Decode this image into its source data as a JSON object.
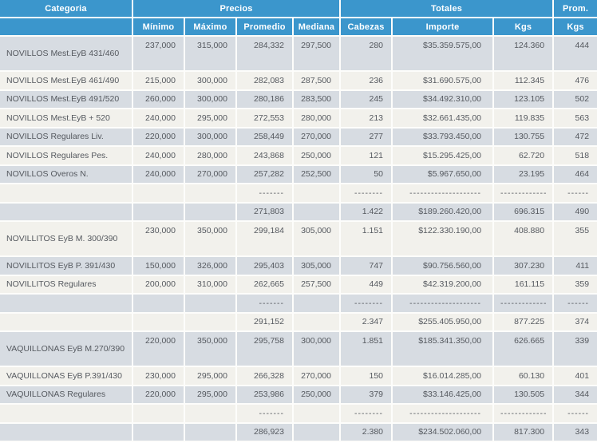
{
  "colors": {
    "header_bg": "#3b96cc",
    "header_text": "#ffffff",
    "row_shade": "#d7dce2",
    "row_light": "#f2f1ec",
    "body_text": "#55595f",
    "grid": "#fdfdfb"
  },
  "header": {
    "category": "Categoria",
    "groups": [
      {
        "label": "Precios"
      },
      {
        "label": "Totales"
      },
      {
        "label": "Prom."
      }
    ],
    "subcolumns": [
      "Mínimo",
      "Máximo",
      "Promedio",
      "Mediana",
      "Cabezas",
      "Importe",
      "Kgs",
      "Kgs"
    ]
  },
  "rows": [
    {
      "type": "data",
      "tall": true,
      "category": "NOVILLOS Mest.EyB 431/460",
      "min": "237,000",
      "max": "315,000",
      "avg": "284,332",
      "median": "297,500",
      "heads": "280",
      "amount": "$35.359.575,00",
      "kgs": "124.360",
      "avg_kgs": "444"
    },
    {
      "type": "data",
      "tall": false,
      "category": "NOVILLOS Mest.EyB 461/490",
      "min": "215,000",
      "max": "300,000",
      "avg": "282,083",
      "median": "287,500",
      "heads": "236",
      "amount": "$31.690.575,00",
      "kgs": "112.345",
      "avg_kgs": "476"
    },
    {
      "type": "data",
      "tall": false,
      "category": "NOVILLOS Mest.EyB 491/520",
      "min": "260,000",
      "max": "300,000",
      "avg": "280,186",
      "median": "283,500",
      "heads": "245",
      "amount": "$34.492.310,00",
      "kgs": "123.105",
      "avg_kgs": "502"
    },
    {
      "type": "data",
      "tall": false,
      "category": "NOVILLOS Mest.EyB + 520",
      "min": "240,000",
      "max": "295,000",
      "avg": "272,553",
      "median": "280,000",
      "heads": "213",
      "amount": "$32.661.435,00",
      "kgs": "119.835",
      "avg_kgs": "563"
    },
    {
      "type": "data",
      "tall": false,
      "category": "NOVILLOS Regulares Liv.",
      "min": "220,000",
      "max": "300,000",
      "avg": "258,449",
      "median": "270,000",
      "heads": "277",
      "amount": "$33.793.450,00",
      "kgs": "130.755",
      "avg_kgs": "472"
    },
    {
      "type": "data",
      "tall": false,
      "category": "NOVILLOS Regulares Pes.",
      "min": "240,000",
      "max": "280,000",
      "avg": "243,868",
      "median": "250,000",
      "heads": "121",
      "amount": "$15.295.425,00",
      "kgs": "62.720",
      "avg_kgs": "518"
    },
    {
      "type": "data",
      "tall": false,
      "category": "NOVILLOS Overos N.",
      "min": "240,000",
      "max": "270,000",
      "avg": "257,282",
      "median": "252,500",
      "heads": "50",
      "amount": "$5.967.650,00",
      "kgs": "23.195",
      "avg_kgs": "464"
    },
    {
      "type": "sep",
      "tall": false,
      "category": "",
      "min": "",
      "max": "",
      "avg": "-------",
      "median": "",
      "heads": "--------",
      "amount": "--------------------",
      "kgs": "-------------",
      "avg_kgs": "------"
    },
    {
      "type": "total",
      "tall": false,
      "category": "",
      "min": "",
      "max": "",
      "avg": "271,803",
      "median": "",
      "heads": "1.422",
      "amount": "$189.260.420,00",
      "kgs": "696.315",
      "avg_kgs": "490"
    },
    {
      "type": "data",
      "tall": true,
      "category": "NOVILLITOS EyB M. 300/390",
      "min": "230,000",
      "max": "350,000",
      "avg": "299,184",
      "median": "305,000",
      "heads": "1.151",
      "amount": "$122.330.190,00",
      "kgs": "408.880",
      "avg_kgs": "355"
    },
    {
      "type": "data",
      "tall": false,
      "category": "NOVILLITOS EyB P. 391/430",
      "min": "150,000",
      "max": "326,000",
      "avg": "295,403",
      "median": "305,000",
      "heads": "747",
      "amount": "$90.756.560,00",
      "kgs": "307.230",
      "avg_kgs": "411"
    },
    {
      "type": "data",
      "tall": false,
      "category": "NOVILLITOS Regulares",
      "min": "200,000",
      "max": "310,000",
      "avg": "262,665",
      "median": "257,500",
      "heads": "449",
      "amount": "$42.319.200,00",
      "kgs": "161.115",
      "avg_kgs": "359"
    },
    {
      "type": "sep",
      "tall": false,
      "category": "",
      "min": "",
      "max": "",
      "avg": "-------",
      "median": "",
      "heads": "--------",
      "amount": "--------------------",
      "kgs": "-------------",
      "avg_kgs": "------"
    },
    {
      "type": "total",
      "tall": false,
      "category": "",
      "min": "",
      "max": "",
      "avg": "291,152",
      "median": "",
      "heads": "2.347",
      "amount": "$255.405.950,00",
      "kgs": "877.225",
      "avg_kgs": "374"
    },
    {
      "type": "data",
      "tall": true,
      "category": "VAQUILLONAS EyB M.270/390",
      "min": "220,000",
      "max": "350,000",
      "avg": "295,758",
      "median": "300,000",
      "heads": "1.851",
      "amount": "$185.341.350,00",
      "kgs": "626.665",
      "avg_kgs": "339"
    },
    {
      "type": "data",
      "tall": false,
      "category": "VAQUILLONAS EyB P.391/430",
      "min": "230,000",
      "max": "295,000",
      "avg": "266,328",
      "median": "270,000",
      "heads": "150",
      "amount": "$16.014.285,00",
      "kgs": "60.130",
      "avg_kgs": "401"
    },
    {
      "type": "data",
      "tall": false,
      "category": "VAQUILLONAS Regulares",
      "min": "220,000",
      "max": "295,000",
      "avg": "253,986",
      "median": "250,000",
      "heads": "379",
      "amount": "$33.146.425,00",
      "kgs": "130.505",
      "avg_kgs": "344"
    },
    {
      "type": "sep",
      "tall": false,
      "category": "",
      "min": "",
      "max": "",
      "avg": "-------",
      "median": "",
      "heads": "--------",
      "amount": "--------------------",
      "kgs": "-------------",
      "avg_kgs": "------"
    },
    {
      "type": "total",
      "tall": false,
      "category": "",
      "min": "",
      "max": "",
      "avg": "286,923",
      "median": "",
      "heads": "2.380",
      "amount": "$234.502.060,00",
      "kgs": "817.300",
      "avg_kgs": "343"
    }
  ]
}
